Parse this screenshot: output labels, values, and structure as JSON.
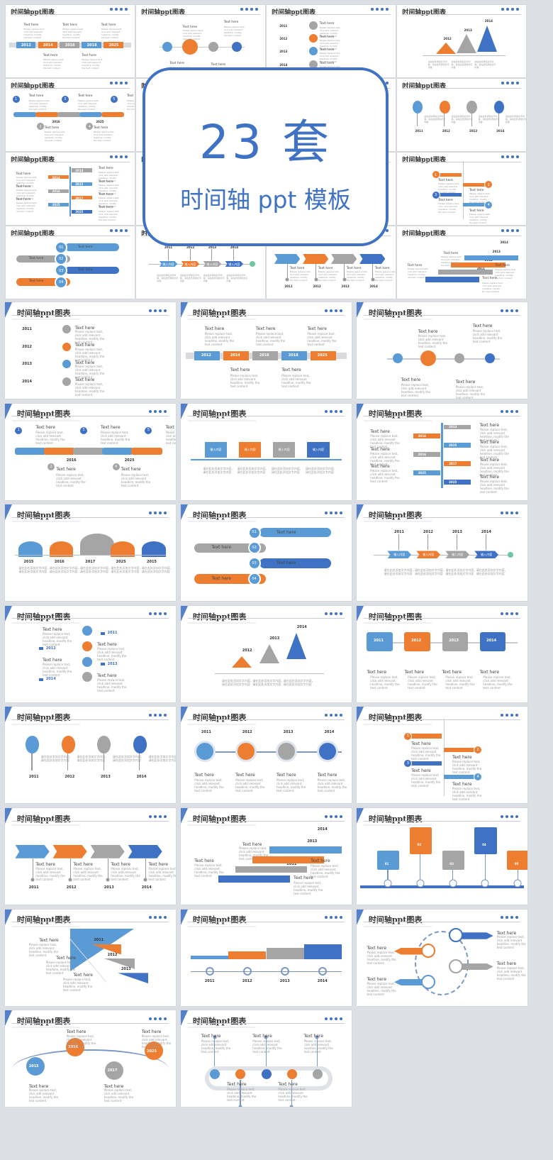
{
  "overlay": {
    "title": "23 套",
    "subtitle": "时间轴 ppt 模板"
  },
  "slide_title": "时间轴ppt图表",
  "placeholder": "Text here",
  "body_text": "Please replace text, click add relevant headline, modify the text content",
  "cn_text": "请在此处添加文字内容，请在此处添加文字内容",
  "input_label": "输入内容",
  "years_a": [
    "2012",
    "2014",
    "2016",
    "2018",
    "2025"
  ],
  "years_b": [
    "2016",
    "2025"
  ],
  "years_c": [
    "2011",
    "2012",
    "2013",
    "2014"
  ],
  "years_d": [
    "2013",
    "2014",
    "2015",
    "2016",
    "2017",
    "2025",
    "2025"
  ],
  "years_e": [
    "2015",
    "2016",
    "2017",
    "2025"
  ],
  "steps": [
    "01",
    "02",
    "03",
    "04",
    "05"
  ],
  "numbers": [
    "1",
    "2",
    "3",
    "4",
    "5"
  ],
  "colors": {
    "blue": "#3f72c4",
    "lightblue": "#5b9bd5",
    "orange": "#ed7d31",
    "gray": "#a5a5a5",
    "dark": "#333333"
  }
}
